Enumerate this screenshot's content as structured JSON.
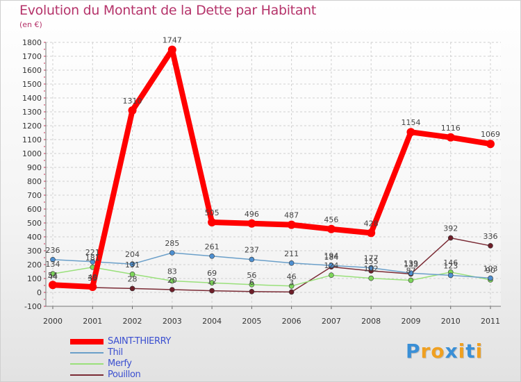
{
  "chart_data": {
    "type": "line",
    "title": "Evolution du Montant de la Dette par Habitant",
    "unit_label": "(en €)",
    "xlabel": "",
    "ylabel": "",
    "ylim": [
      -100,
      1800
    ],
    "y_ticks": [
      -100,
      0,
      100,
      200,
      300,
      400,
      500,
      600,
      700,
      800,
      900,
      1000,
      1100,
      1200,
      1300,
      1400,
      1500,
      1600,
      1700,
      1800
    ],
    "categories": [
      "2000",
      "2001",
      "2002",
      "2003",
      "2004",
      "2005",
      "2006",
      "2007",
      "2008",
      "2009",
      "2010",
      "2011"
    ],
    "grid": true,
    "legend_position": "bottom-left",
    "series": [
      {
        "name": "SAINT-THIERRY",
        "color": "#ff0000",
        "marker_color": "#ff0000",
        "values": [
          54,
          40,
          1310,
          1747,
          505,
          496,
          487,
          456,
          428,
          1154,
          1116,
          1069
        ],
        "labels": [
          "54",
          "40",
          "1310",
          "1747",
          "505",
          "496",
          "487",
          "456",
          "428",
          "1154",
          "1116",
          "1069"
        ]
      },
      {
        "name": "Thil",
        "color": "#6a9fc9",
        "marker_color": "#4e8fd0",
        "values": [
          236,
          221,
          204,
          285,
          261,
          237,
          211,
          194,
          177,
          139,
          123,
          103
        ],
        "labels": [
          "236",
          "221",
          "204",
          "285",
          "261",
          "237",
          "211",
          "194",
          "177",
          "139",
          "123",
          "103"
        ]
      },
      {
        "name": "Merfy",
        "color": "#99e07a",
        "marker_color": "#7dd65a",
        "values": [
          134,
          181,
          131,
          83,
          69,
          56,
          46,
          124,
          102,
          87,
          146,
          90
        ],
        "labels": [
          "134",
          "181",
          "131",
          "83",
          "69",
          "56",
          "46",
          "124",
          "102",
          "87",
          "146",
          "90"
        ]
      },
      {
        "name": "Pouillon",
        "color": "#7a2a34",
        "marker_color": "#6e1e28",
        "values": [
          44,
          35,
          28,
          20,
          12,
          6,
          3,
          184,
          155,
          133,
          392,
          336
        ],
        "labels": [
          "44",
          "35",
          "28",
          "20",
          "12",
          "6",
          "3",
          "184",
          "155",
          "133",
          "392",
          "336"
        ]
      }
    ]
  },
  "brand": {
    "letters": [
      "P",
      "r",
      "o",
      "x",
      "i",
      "t",
      "i"
    ],
    "colors": [
      "#3a8fd6",
      "#f0a020",
      "#f0a020",
      "#3a8fd6",
      "#f0a020",
      "#3a8fd6",
      "#f0a020"
    ]
  }
}
